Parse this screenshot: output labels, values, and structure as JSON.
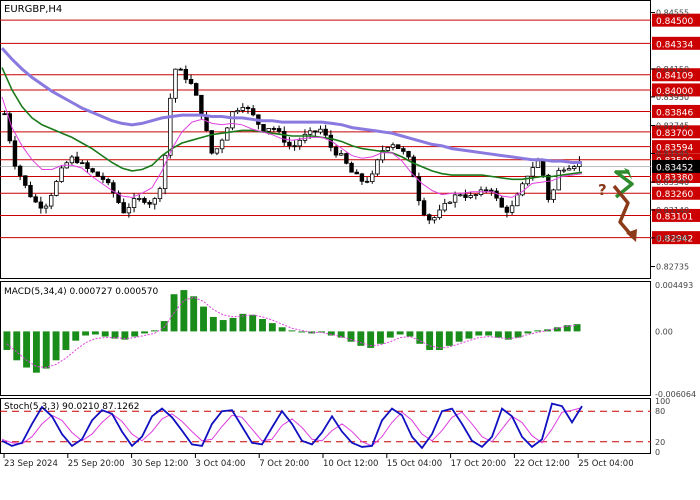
{
  "chart_data": [
    {
      "type": "candlestick",
      "panel": "price",
      "title": "EURGBP,H4",
      "price_ticks": [
        "0.84555",
        "0.84150",
        "0.83950",
        "0.83745",
        "0.83545",
        "0.83340",
        "0.83140",
        "0.82940",
        "0.82735"
      ],
      "levels": [
        {
          "label": "0.84500",
          "value": 0.845
        },
        {
          "label": "0.84334",
          "value": 0.84334
        },
        {
          "label": "0.84109",
          "value": 0.84109
        },
        {
          "label": "0.84000",
          "value": 0.84
        },
        {
          "label": "0.83846",
          "value": 0.83846
        },
        {
          "label": "0.83700",
          "value": 0.837
        },
        {
          "label": "0.83594",
          "value": 0.83594
        },
        {
          "label": "0.83500",
          "value": 0.835
        },
        {
          "label": "0.83380",
          "value": 0.8338
        },
        {
          "label": "0.83260",
          "value": 0.8326
        },
        {
          "label": "0.83101",
          "value": 0.83101
        },
        {
          "label": "0.82942",
          "value": 0.82942
        }
      ],
      "current_price": {
        "label": "0.83452",
        "value": 0.83452
      },
      "ylim": [
        0.8266,
        0.8463
      ],
      "close_path": [
        0.8383,
        0.8348,
        0.8332,
        0.832,
        0.8316,
        0.833,
        0.8346,
        0.8352,
        0.8345,
        0.834,
        0.8336,
        0.8326,
        0.8313,
        0.832,
        0.8322,
        0.8318,
        0.8338,
        0.8416,
        0.8412,
        0.8402,
        0.838,
        0.8352,
        0.8366,
        0.8384,
        0.839,
        0.8382,
        0.8372,
        0.8374,
        0.8366,
        0.8358,
        0.8366,
        0.8369,
        0.8372,
        0.8358,
        0.8352,
        0.8341,
        0.8335,
        0.8336,
        0.8356,
        0.8363,
        0.8357,
        0.8348,
        0.8316,
        0.8306,
        0.8313,
        0.8322,
        0.8326,
        0.8323,
        0.8326,
        0.8331,
        0.8316,
        0.8313,
        0.8327,
        0.8343,
        0.835,
        0.8318,
        0.8344,
        0.8346,
        0.8348
      ],
      "ma_fast_pink": [
        0.8395,
        0.8373,
        0.836,
        0.835,
        0.8343,
        0.8343,
        0.8346,
        0.8346,
        0.8344,
        0.8338,
        0.8333,
        0.8328,
        0.8324,
        0.8323,
        0.8326,
        0.833,
        0.8342,
        0.8358,
        0.837,
        0.8377,
        0.8379,
        0.8376,
        0.8375,
        0.8376,
        0.8375,
        0.8372,
        0.837,
        0.8368,
        0.8365,
        0.8364,
        0.8365,
        0.8366,
        0.8366,
        0.8363,
        0.8358,
        0.8353,
        0.8351,
        0.8352,
        0.8355,
        0.8355,
        0.8349,
        0.834,
        0.8333,
        0.8328,
        0.8325,
        0.8326,
        0.8326,
        0.8327,
        0.8327,
        0.8327,
        0.8324,
        0.8323,
        0.8327,
        0.8333,
        0.8334,
        0.8335,
        0.8338,
        0.8339,
        0.834
      ],
      "ma_mid_green": [
        0.8416,
        0.84,
        0.8388,
        0.838,
        0.8375,
        0.8372,
        0.8369,
        0.8366,
        0.8362,
        0.8358,
        0.8353,
        0.8348,
        0.8344,
        0.8342,
        0.8343,
        0.8346,
        0.8353,
        0.8358,
        0.8362,
        0.8364,
        0.8366,
        0.8368,
        0.8369,
        0.837,
        0.8371,
        0.8371,
        0.837,
        0.8369,
        0.8368,
        0.8367,
        0.8367,
        0.8367,
        0.8366,
        0.8365,
        0.8363,
        0.836,
        0.8358,
        0.8357,
        0.8356,
        0.8355,
        0.8352,
        0.8348,
        0.8345,
        0.8342,
        0.834,
        0.8339,
        0.8339,
        0.8339,
        0.8339,
        0.8338,
        0.8337,
        0.8336,
        0.8336,
        0.8337,
        0.8338,
        0.8338,
        0.8339,
        0.834,
        0.8341
      ],
      "ma_slow_blue": [
        0.843,
        0.8422,
        0.8415,
        0.8409,
        0.8404,
        0.8399,
        0.8395,
        0.8391,
        0.8387,
        0.8384,
        0.8381,
        0.8378,
        0.8376,
        0.8375,
        0.8376,
        0.8378,
        0.838,
        0.8381,
        0.8382,
        0.8382,
        0.8382,
        0.8381,
        0.8381,
        0.838,
        0.838,
        0.8379,
        0.8378,
        0.8378,
        0.8377,
        0.8377,
        0.8377,
        0.8377,
        0.8377,
        0.8376,
        0.8375,
        0.8373,
        0.8372,
        0.8371,
        0.837,
        0.8369,
        0.8367,
        0.8365,
        0.8363,
        0.8361,
        0.836,
        0.8358,
        0.8357,
        0.8356,
        0.8355,
        0.8354,
        0.8353,
        0.8352,
        0.8351,
        0.835,
        0.835,
        0.8349,
        0.8349,
        0.8348,
        0.8348
      ],
      "annotation": "?",
      "colors": {
        "candle": "#000000",
        "ma_fast": "#e040e0",
        "ma_mid": "#1a7a1a",
        "ma_slow": "#8a7ae0",
        "level": "#cc0000",
        "up_arrow": "#2e8b2e",
        "down_arrow": "#8b3a1a"
      }
    },
    {
      "type": "bar",
      "panel": "macd",
      "title": "MACD(5,34,4) 0.000727 0.000570",
      "ticks": [
        "0.004493",
        "0.00",
        "-0.006064"
      ],
      "ylim": [
        -0.006064,
        0.004493
      ],
      "values": [
        -0.0018,
        -0.0028,
        -0.0035,
        -0.004,
        -0.0036,
        -0.0028,
        -0.0018,
        -0.0009,
        -0.0004,
        -0.0003,
        -0.0005,
        -0.0007,
        -0.0008,
        -0.0005,
        -0.0002,
        0.0001,
        0.001,
        0.0036,
        0.004,
        0.0034,
        0.0024,
        0.0014,
        0.0011,
        0.0013,
        0.0017,
        0.0016,
        0.0012,
        0.0008,
        0.0004,
        0.0001,
        -0.0001,
        -0.0002,
        -0.0001,
        -0.0004,
        -0.0006,
        -0.001,
        -0.0014,
        -0.0016,
        -0.0012,
        -0.0006,
        -0.0003,
        -0.0005,
        -0.0012,
        -0.0018,
        -0.0018,
        -0.0014,
        -0.001,
        -0.0007,
        -0.0004,
        -0.0004,
        -0.0006,
        -0.0008,
        -0.0006,
        -0.0002,
        0.0001,
        0.0002,
        0.0004,
        0.0006,
        0.0007
      ],
      "signal": [
        -0.0012,
        -0.002,
        -0.0028,
        -0.0034,
        -0.0035,
        -0.0032,
        -0.0026,
        -0.0018,
        -0.0011,
        -0.0007,
        -0.0006,
        -0.0006,
        -0.0007,
        -0.0006,
        -0.0004,
        -0.0002,
        0.0004,
        0.0018,
        0.003,
        0.0033,
        0.0029,
        0.0021,
        0.0016,
        0.0014,
        0.0015,
        0.0016,
        0.0014,
        0.0011,
        0.0007,
        0.0003,
        0.0001,
        -0.0001,
        -0.0001,
        -0.0003,
        -0.0005,
        -0.0008,
        -0.0011,
        -0.0014,
        -0.0013,
        -0.001,
        -0.0006,
        -0.0005,
        -0.0009,
        -0.0014,
        -0.0016,
        -0.0015,
        -0.0012,
        -0.0009,
        -0.0006,
        -0.0005,
        -0.0006,
        -0.0007,
        -0.0006,
        -0.0003,
        -0.0001,
        0.0001,
        0.0003,
        0.0005,
        0.0006
      ],
      "colors": {
        "bars": "#1a8c1a",
        "signal": "#e040e0"
      }
    },
    {
      "type": "line",
      "panel": "stochastic",
      "title": "Stoch(5,3,3) 90.0210 87.1262",
      "ticks": [
        "100",
        "80",
        "20",
        "0"
      ],
      "ylim": [
        0,
        100
      ],
      "levels": [
        80,
        20
      ],
      "x_labels": [
        "23 Sep 2024",
        "25 Sep 20:00",
        "30 Sep 12:00",
        "3 Oct 04:00",
        "7 Oct 20:00",
        "10 Oct 12:00",
        "15 Oct 04:00",
        "17 Oct 20:00",
        "22 Oct 12:00",
        "25 Oct 04:00"
      ],
      "main": [
        22,
        12,
        18,
        55,
        88,
        70,
        35,
        12,
        25,
        62,
        82,
        75,
        40,
        12,
        30,
        70,
        85,
        68,
        42,
        15,
        12,
        55,
        80,
        82,
        50,
        18,
        15,
        48,
        80,
        55,
        22,
        15,
        38,
        70,
        40,
        18,
        10,
        12,
        62,
        85,
        72,
        30,
        8,
        35,
        80,
        85,
        55,
        22,
        10,
        30,
        85,
        70,
        30,
        10,
        25,
        95,
        90,
        58,
        90
      ],
      "signal": [
        25,
        18,
        16,
        30,
        55,
        72,
        62,
        38,
        22,
        35,
        58,
        75,
        60,
        35,
        22,
        40,
        65,
        75,
        60,
        40,
        22,
        25,
        50,
        72,
        68,
        45,
        22,
        25,
        52,
        65,
        48,
        25,
        22,
        42,
        55,
        40,
        20,
        12,
        30,
        58,
        78,
        62,
        35,
        22,
        42,
        68,
        78,
        55,
        30,
        20,
        45,
        70,
        58,
        32,
        18,
        45,
        78,
        82,
        87
      ],
      "colors": {
        "main": "#1010c0",
        "signal": "#e040e0",
        "level": "#cc0000"
      }
    }
  ]
}
